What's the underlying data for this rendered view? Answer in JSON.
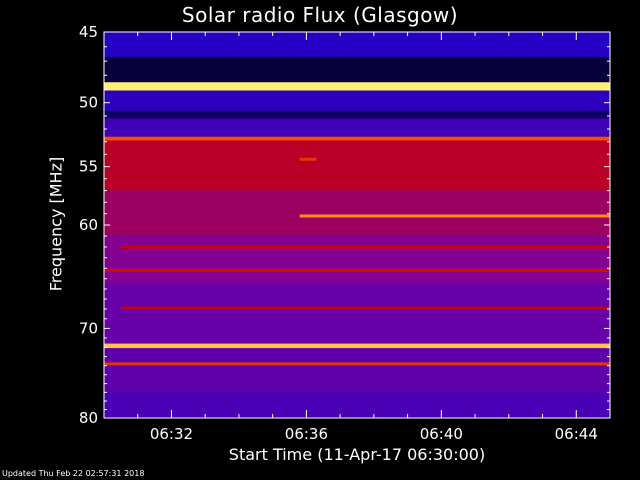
{
  "chart_data": {
    "type": "heatmap",
    "title": "Solar radio Flux (Glasgow)",
    "ylabel": "Frequency [MHz]",
    "xlabel": "Start Time (11-Apr-17 06:30:00)",
    "ylim": [
      45,
      80
    ],
    "y_reversed": true,
    "y_scale": "log",
    "xlim_minutes_after_0630": [
      0,
      15
    ],
    "y_ticks": [
      45,
      50,
      55,
      60,
      70,
      80
    ],
    "x_ticks": [
      "06:32",
      "06:36",
      "06:40",
      "06:44"
    ],
    "x_tick_minutes": [
      2,
      6,
      10,
      14
    ],
    "colormap": [
      "#000000",
      "#1a00c8",
      "#7a00a0",
      "#d00000",
      "#ff6a00",
      "#ffff80"
    ],
    "bands": [
      {
        "from": 45.0,
        "to": 46.7,
        "level": 0.22
      },
      {
        "from": 46.7,
        "to": 48.5,
        "level": 0.06
      },
      {
        "from": 48.5,
        "to": 49.1,
        "level": 0.98
      },
      {
        "from": 49.1,
        "to": 50.6,
        "level": 0.24
      },
      {
        "from": 50.6,
        "to": 51.2,
        "level": 0.1
      },
      {
        "from": 51.2,
        "to": 52.6,
        "level": 0.28
      },
      {
        "from": 52.6,
        "to": 52.9,
        "level": 0.75
      },
      {
        "from": 52.9,
        "to": 57.0,
        "level": 0.55
      },
      {
        "from": 57.0,
        "to": 61.0,
        "level": 0.48
      },
      {
        "from": 61.0,
        "to": 65.5,
        "level": 0.42
      },
      {
        "from": 65.5,
        "to": 71.6,
        "level": 0.36
      },
      {
        "from": 71.6,
        "to": 72.1,
        "level": 0.92
      },
      {
        "from": 72.1,
        "to": 77.0,
        "level": 0.34
      },
      {
        "from": 77.0,
        "to": 80.0,
        "level": 0.3
      }
    ],
    "features": [
      {
        "freq": 59.2,
        "from_min": 5.8,
        "to_min": 15.0,
        "level": 0.85
      },
      {
        "freq": 54.4,
        "from_min": 5.8,
        "to_min": 6.3,
        "level": 0.7
      },
      {
        "freq": 62.0,
        "from_min": 0.5,
        "to_min": 15.0,
        "level": 0.6
      },
      {
        "freq": 64.2,
        "from_min": 0.0,
        "to_min": 15.0,
        "level": 0.62
      },
      {
        "freq": 67.9,
        "from_min": 0.5,
        "to_min": 15.0,
        "level": 0.58
      },
      {
        "freq": 73.8,
        "from_min": 0.0,
        "to_min": 15.0,
        "level": 0.7
      }
    ]
  },
  "footer": "Updated Thu Feb 22 02:57:31 2018"
}
